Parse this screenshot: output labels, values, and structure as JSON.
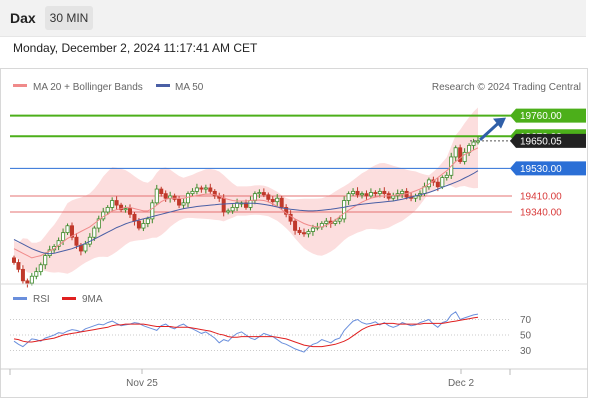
{
  "header": {
    "instrument": "Dax",
    "timeframe": "30 MIN"
  },
  "datetime": "Monday, December 2, 2024 11:17:41 AM CET",
  "legend": {
    "ma20": "MA 20 + Bollinger Bands",
    "ma50": "MA 50",
    "rsi": "RSI",
    "rsi9": "9MA",
    "credit": "Research © 2024 Trading Central"
  },
  "colors": {
    "up": "#3d8a2a",
    "down": "#c0392b",
    "ma20": "#f08a8a",
    "ma50": "#4a5fa5",
    "bands": "#fcdede",
    "target": "#4caf1a",
    "pivot": "#2b6fd6",
    "support": "#e57373",
    "arrow": "#2f5fa8",
    "rsi": "#6a8fdc",
    "rsi9": "#e02020"
  },
  "chart_data": [
    {
      "type": "candlestick",
      "x_ticks": [
        "Nov 25",
        "Dec 2"
      ],
      "ylim": [
        19000,
        19850
      ],
      "levels": [
        {
          "label": "19760.00",
          "value": 19760,
          "kind": "resistance"
        },
        {
          "label": "19670.00",
          "value": 19670,
          "kind": "resistance"
        },
        {
          "label": "19650.05",
          "value": 19650,
          "kind": "last"
        },
        {
          "label": "19530.00",
          "value": 19530,
          "kind": "pivot"
        },
        {
          "label": "19410.00",
          "value": 19410,
          "kind": "support"
        },
        {
          "label": "19340.00",
          "value": 19340,
          "kind": "support"
        }
      ],
      "close": [
        19120,
        19090,
        19040,
        19030,
        19060,
        19080,
        19110,
        19150,
        19175,
        19190,
        19215,
        19250,
        19280,
        19230,
        19195,
        19170,
        19200,
        19230,
        19270,
        19310,
        19340,
        19360,
        19390,
        19370,
        19350,
        19355,
        19330,
        19300,
        19270,
        19290,
        19310,
        19380,
        19440,
        19420,
        19400,
        19410,
        19395,
        19370,
        19380,
        19420,
        19430,
        19445,
        19440,
        19445,
        19430,
        19410,
        19400,
        19340,
        19345,
        19360,
        19380,
        19380,
        19360,
        19390,
        19420,
        19425,
        19415,
        19395,
        19385,
        19400,
        19360,
        19330,
        19300,
        19260,
        19250,
        19245,
        19255,
        19270,
        19275,
        19290,
        19300,
        19290,
        19300,
        19310,
        19390,
        19420,
        19430,
        19415,
        19420,
        19410,
        19425,
        19420,
        19430,
        19420,
        19400,
        19410,
        19420,
        19430,
        19405,
        19400,
        19410,
        19420,
        19450,
        19480,
        19470,
        19450,
        19490,
        19500,
        19580,
        19620,
        19560,
        19600,
        19630,
        19645,
        19650
      ],
      "ma20": [
        19180,
        19170,
        19160,
        19150,
        19140,
        19145,
        19150,
        19160,
        19170,
        19180,
        19195,
        19210,
        19225,
        19235,
        19245,
        19255,
        19265,
        19275,
        19290,
        19305,
        19320,
        19330,
        19345,
        19350,
        19355,
        19360,
        19360,
        19355,
        19350,
        19345,
        19345,
        19355,
        19370,
        19385,
        19395,
        19400,
        19400,
        19400,
        19400,
        19405,
        19408,
        19412,
        19415,
        19418,
        19418,
        19415,
        19410,
        19400,
        19395,
        19390,
        19388,
        19388,
        19388,
        19390,
        19392,
        19392,
        19390,
        19385,
        19375,
        19365,
        19350,
        19335,
        19322,
        19310,
        19300,
        19290,
        19283,
        19278,
        19275,
        19275,
        19282,
        19292,
        19305,
        19320,
        19335,
        19348,
        19360,
        19372,
        19383,
        19392,
        19400,
        19405,
        19408,
        19410,
        19410,
        19412,
        19414,
        19416,
        19420,
        19425,
        19432,
        19440,
        19450,
        19462,
        19475,
        19490,
        19505,
        19520,
        19540,
        19560,
        19575,
        19590,
        19600,
        19610,
        19620
      ],
      "ma50": [
        19220,
        19210,
        19200,
        19190,
        19180,
        19172,
        19165,
        19160,
        19158,
        19160,
        19165,
        19170,
        19175,
        19180,
        19188,
        19195,
        19203,
        19212,
        19222,
        19232,
        19242,
        19252,
        19262,
        19272,
        19280,
        19288,
        19295,
        19300,
        19305,
        19310,
        19315,
        19320,
        19325,
        19330,
        19335,
        19340,
        19345,
        19350,
        19355,
        19358,
        19361,
        19364,
        19366,
        19368,
        19370,
        19372,
        19374,
        19375,
        19376,
        19377,
        19378,
        19378,
        19378,
        19378,
        19378,
        19376,
        19373,
        19370,
        19366,
        19362,
        19358,
        19355,
        19352,
        19350,
        19348,
        19346,
        19345,
        19345,
        19346,
        19348,
        19350,
        19352,
        19355,
        19358,
        19361,
        19365,
        19368,
        19371,
        19374,
        19376,
        19378,
        19380,
        19382,
        19384,
        19386,
        19388,
        19392,
        19396,
        19400,
        19405,
        19410,
        19415,
        19420,
        19425,
        19432,
        19440,
        19448,
        19455,
        19462,
        19470,
        19478,
        19488,
        19498,
        19508,
        19520
      ]
    },
    {
      "type": "line",
      "name": "RSI",
      "y_ticks": [
        70,
        50,
        30
      ],
      "ylim": [
        10,
        90
      ],
      "rsi": [
        42,
        38,
        35,
        40,
        45,
        44,
        42,
        46,
        48,
        50,
        53,
        52,
        55,
        57,
        56,
        54,
        58,
        60,
        62,
        64,
        63,
        66,
        68,
        65,
        62,
        63,
        64,
        66,
        65,
        62,
        60,
        58,
        56,
        62,
        64,
        60,
        58,
        62,
        64,
        60,
        58,
        55,
        52,
        54,
        50,
        46,
        40,
        44,
        42,
        48,
        52,
        54,
        50,
        46,
        44,
        48,
        52,
        50,
        48,
        44,
        40,
        38,
        35,
        32,
        30,
        28,
        34,
        38,
        40,
        44,
        42,
        40,
        44,
        46,
        56,
        62,
        68,
        70,
        66,
        64,
        65,
        67,
        63,
        66,
        62,
        60,
        62,
        66,
        64,
        62,
        63,
        66,
        68,
        70,
        64,
        60,
        66,
        68,
        76,
        80,
        70,
        72,
        74,
        76,
        77
      ],
      "ma9": [
        45,
        44,
        42,
        41,
        41,
        42,
        43,
        44,
        45,
        46,
        48,
        50,
        51,
        52,
        53,
        54,
        55,
        56,
        57,
        58,
        59,
        60,
        62,
        63,
        63,
        64,
        64,
        64,
        64,
        64,
        63,
        62,
        61,
        61,
        61,
        61,
        60,
        60,
        60,
        60,
        59,
        58,
        57,
        56,
        55,
        53,
        51,
        50,
        48,
        47,
        47,
        48,
        48,
        48,
        48,
        48,
        48,
        48,
        48,
        47,
        46,
        45,
        43,
        41,
        39,
        37,
        36,
        35,
        35,
        35,
        36,
        37,
        38,
        40,
        42,
        45,
        49,
        53,
        57,
        60,
        62,
        63,
        64,
        65,
        65,
        65,
        64,
        64,
        64,
        64,
        64,
        64,
        65,
        65,
        65,
        65,
        65,
        66,
        67,
        68,
        69,
        70,
        71,
        72,
        73
      ]
    }
  ]
}
